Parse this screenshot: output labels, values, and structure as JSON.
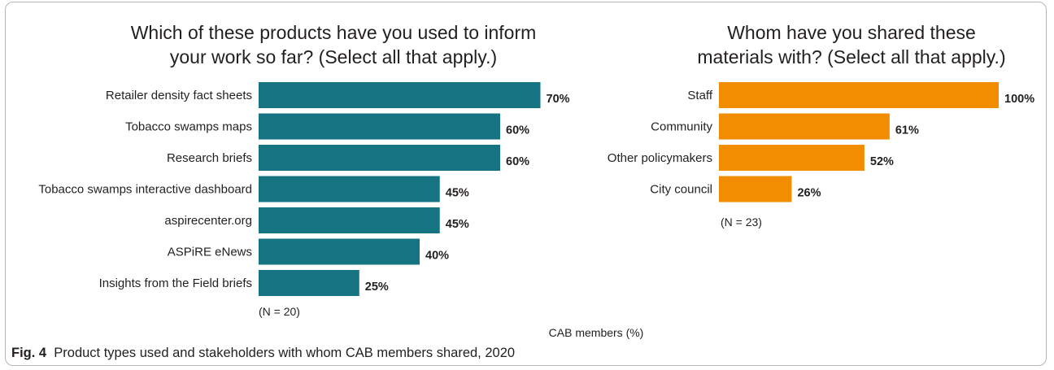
{
  "chart_data": [
    {
      "type": "bar",
      "orientation": "horizontal",
      "title": "Which of these products have you used to inform your work so far? (Select all that apply.)",
      "title_lines": [
        "Which of these products have you used to inform",
        "your work so far? (Select all that apply.)"
      ],
      "categories": [
        "Retailer density fact sheets",
        "Tobacco swamps maps",
        "Research briefs",
        "Tobacco swamps interactive dashboard",
        "aspirecenter.org",
        "ASPiRE eNews",
        "Insights from the Field briefs"
      ],
      "values": [
        70,
        60,
        60,
        45,
        45,
        40,
        25
      ],
      "value_labels": [
        "70%",
        "60%",
        "60%",
        "45%",
        "45%",
        "40%",
        "25%"
      ],
      "sample_note": "(N = 20)",
      "color": "#167482",
      "xlim": [
        0,
        100
      ]
    },
    {
      "type": "bar",
      "orientation": "horizontal",
      "title": "Whom have you shared these materials with? (Select all that apply.)",
      "title_lines": [
        "Whom have you shared these",
        "materials with? (Select all that apply.)"
      ],
      "categories": [
        "Staff",
        "Community",
        "Other policymakers",
        "City council"
      ],
      "values": [
        100,
        61,
        52,
        26
      ],
      "value_labels": [
        "100%",
        "61%",
        "52%",
        "26%"
      ],
      "sample_note": "(N = 23)",
      "color": "#f28c00",
      "xlim": [
        0,
        100
      ]
    }
  ],
  "shared_axis_label": "CAB members (%)",
  "caption": {
    "label": "Fig. 4",
    "text": "Product types used and stakeholders with whom CAB members shared, 2020"
  }
}
